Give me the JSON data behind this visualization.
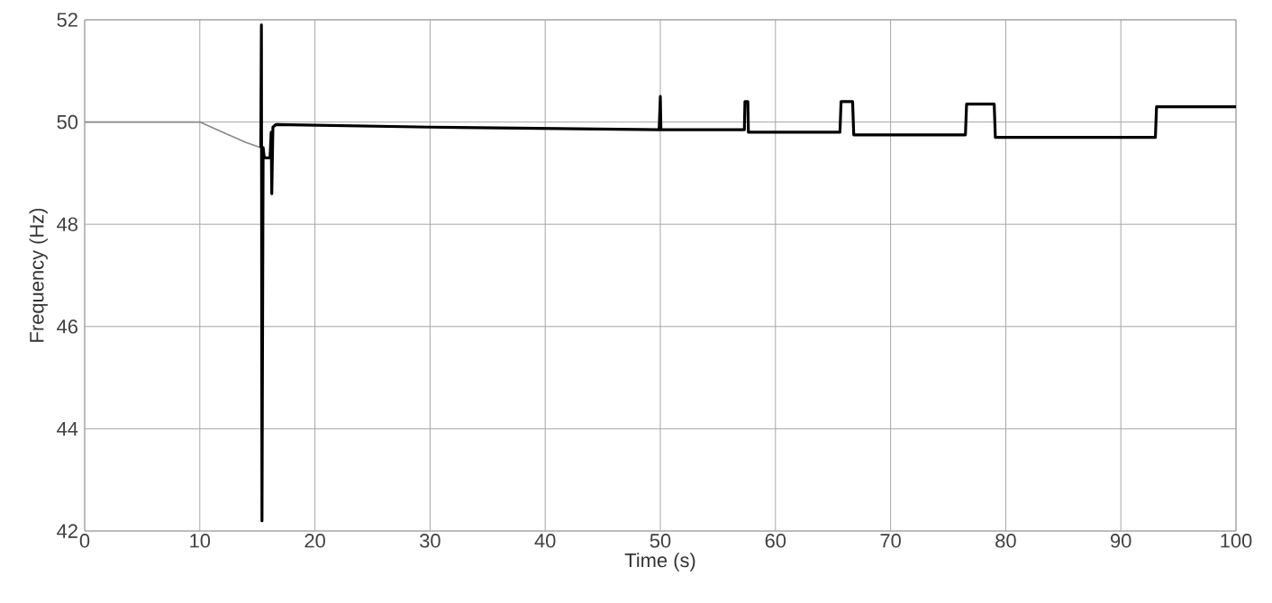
{
  "chart_data": {
    "type": "line",
    "xlabel": "Time (s)",
    "ylabel": "Frequency (Hz)",
    "xlim": [
      0,
      100
    ],
    "ylim": [
      42,
      52
    ],
    "xticks": [
      0,
      10,
      20,
      30,
      40,
      50,
      60,
      70,
      80,
      90,
      100
    ],
    "yticks": [
      42,
      44,
      46,
      48,
      50,
      52
    ],
    "grid": true,
    "marker": "none",
    "line_style": "solid",
    "series": [
      {
        "color": "#888888",
        "x": [
          0,
          10,
          12,
          14,
          15.3
        ],
        "values": [
          50,
          50,
          49.8,
          49.6,
          49.5
        ]
      },
      {
        "color": "#000000",
        "x": [
          15.3,
          15.35,
          15.4,
          15.5,
          15.6,
          16.1,
          16.2,
          16.25,
          16.35,
          16.6,
          30,
          49.9,
          50,
          50.05,
          57.3,
          57.35,
          57.6,
          57.65,
          65.6,
          65.7,
          66.7,
          66.8,
          76.5,
          76.6,
          79,
          79.1,
          93,
          93.1,
          100
        ],
        "values": [
          49.5,
          51.9,
          42.2,
          49.5,
          49.3,
          49.3,
          49.8,
          48.6,
          49.9,
          49.95,
          49.9,
          49.85,
          50.5,
          49.85,
          49.85,
          50.4,
          50.4,
          49.8,
          49.8,
          50.4,
          50.4,
          49.75,
          49.75,
          50.35,
          50.35,
          49.7,
          49.7,
          50.3,
          50.3
        ]
      }
    ]
  }
}
